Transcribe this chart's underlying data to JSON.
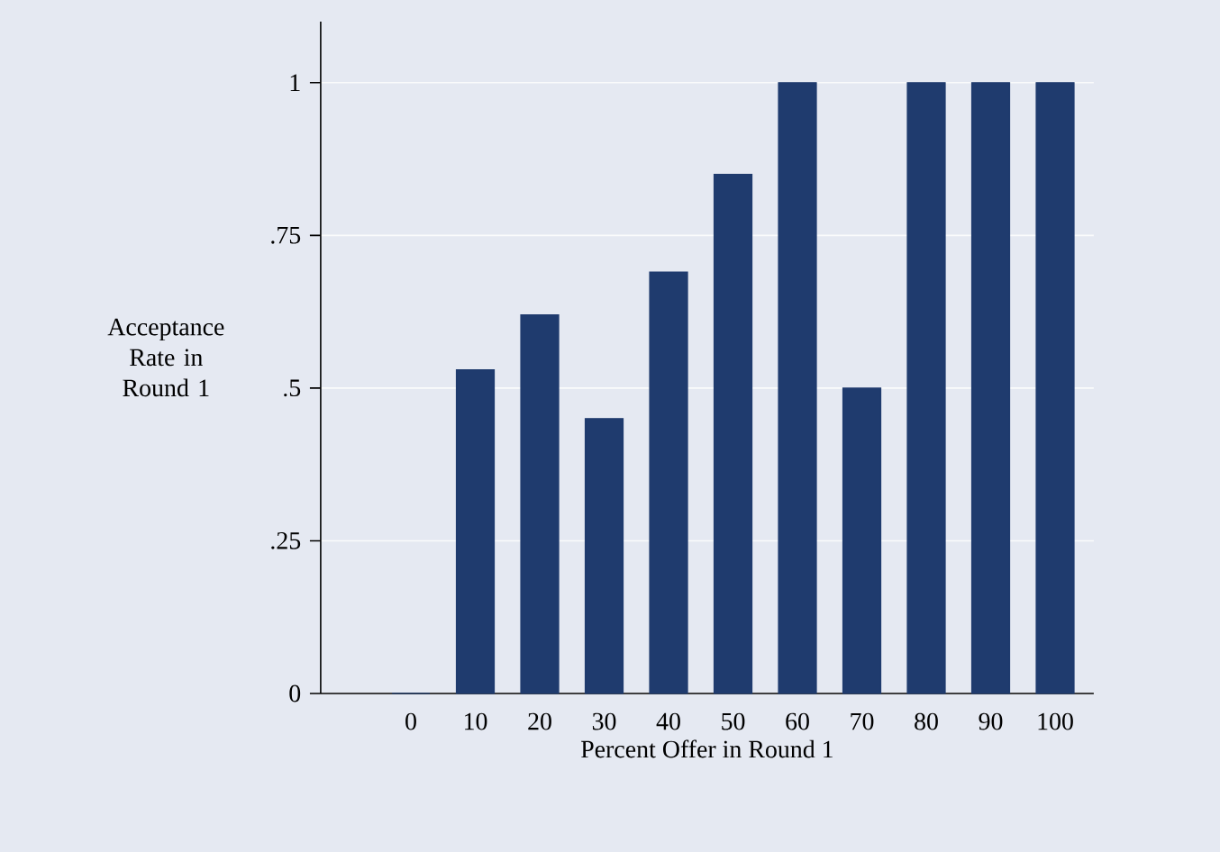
{
  "chart_data": {
    "type": "bar",
    "xlabel": "Percent Offer in Round 1",
    "ylabel": "Acceptance Rate in Round 1",
    "categories": [
      "0",
      "10",
      "20",
      "30",
      "40",
      "50",
      "60",
      "70",
      "80",
      "90",
      "100"
    ],
    "values": [
      0,
      0.53,
      0.62,
      0.45,
      0.69,
      0.85,
      1,
      0.5,
      1,
      1,
      1
    ],
    "color": "#1f3b6e",
    "ylim": [
      0,
      1.1
    ],
    "yticks": [
      0,
      {
        "value": 0.25,
        "label": ".25"
      },
      {
        "value": 0.5,
        "label": ".5"
      },
      {
        "value": 0.75,
        "label": ".75"
      },
      1
    ],
    "grid": "y"
  }
}
